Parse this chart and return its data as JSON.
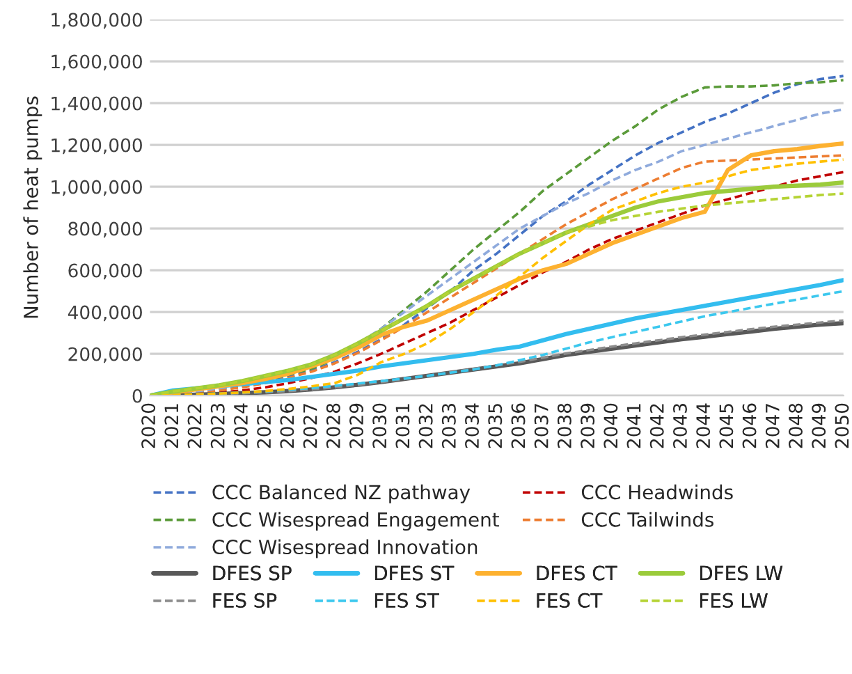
{
  "chart_data": {
    "type": "line",
    "ylabel": "Number of heat pumps",
    "x": [
      2020,
      2021,
      2022,
      2023,
      2024,
      2025,
      2026,
      2027,
      2028,
      2029,
      2030,
      2031,
      2032,
      2033,
      2034,
      2035,
      2036,
      2037,
      2038,
      2039,
      2040,
      2041,
      2042,
      2043,
      2044,
      2045,
      2046,
      2047,
      2048,
      2049,
      2050
    ],
    "xlim": [
      2020,
      2050
    ],
    "xticks": [
      2020,
      2021,
      2022,
      2023,
      2024,
      2025,
      2026,
      2027,
      2028,
      2029,
      2030,
      2031,
      2032,
      2033,
      2034,
      2035,
      2036,
      2037,
      2038,
      2039,
      2040,
      2041,
      2042,
      2043,
      2044,
      2045,
      2046,
      2047,
      2048,
      2049,
      2050
    ],
    "ylim": [
      0,
      1800000
    ],
    "yticks": [
      {
        "value": 0,
        "label": "0"
      },
      {
        "value": 200000,
        "label": "200,000"
      },
      {
        "value": 400000,
        "label": "400,000"
      },
      {
        "value": 600000,
        "label": "600,000"
      },
      {
        "value": 800000,
        "label": "800,000"
      },
      {
        "value": 1000000,
        "label": "1,000,000"
      },
      {
        "value": 1200000,
        "label": "1,200,000"
      },
      {
        "value": 1400000,
        "label": "1,400,000"
      },
      {
        "value": 1600000,
        "label": "1,600,000"
      },
      {
        "value": 1800000,
        "label": "1,800,000"
      }
    ],
    "grid": "y",
    "legend": "bottom",
    "marker": "none",
    "series": [
      {
        "name": "CCC Balanced NZ pathway",
        "color": "#4472c4",
        "line_style": "dashed",
        "values": [
          0,
          8000,
          18000,
          30000,
          45000,
          65000,
          90000,
          120000,
          160000,
          210000,
          270000,
          340000,
          420000,
          500000,
          600000,
          680000,
          770000,
          860000,
          930000,
          1010000,
          1080000,
          1150000,
          1210000,
          1260000,
          1310000,
          1350000,
          1400000,
          1450000,
          1490000,
          1515000,
          1530000
        ]
      },
      {
        "name": "CCC Headwinds",
        "color": "#c00000",
        "line_style": "dashed",
        "values": [
          0,
          3000,
          8000,
          15000,
          25000,
          40000,
          60000,
          85000,
          115000,
          155000,
          200000,
          250000,
          300000,
          350000,
          410000,
          470000,
          530000,
          590000,
          640000,
          700000,
          750000,
          790000,
          830000,
          870000,
          910000,
          940000,
          970000,
          1000000,
          1030000,
          1050000,
          1070000
        ]
      },
      {
        "name": "CCC Wisespread Engagement",
        "color": "#5b9b3a",
        "line_style": "dashed",
        "values": [
          0,
          10000,
          20000,
          35000,
          55000,
          75000,
          100000,
          130000,
          175000,
          240000,
          320000,
          410000,
          500000,
          600000,
          700000,
          790000,
          880000,
          980000,
          1060000,
          1140000,
          1220000,
          1290000,
          1370000,
          1430000,
          1475000,
          1480000,
          1480000,
          1485000,
          1495000,
          1500000,
          1510000
        ]
      },
      {
        "name": "CCC Tailwinds",
        "color": "#ed7d31",
        "line_style": "dashed",
        "values": [
          0,
          5000,
          15000,
          25000,
          40000,
          60000,
          85000,
          115000,
          155000,
          205000,
          265000,
          330000,
          400000,
          470000,
          540000,
          610000,
          680000,
          750000,
          820000,
          880000,
          940000,
          990000,
          1040000,
          1090000,
          1120000,
          1125000,
          1130000,
          1135000,
          1140000,
          1145000,
          1150000
        ]
      },
      {
        "name": "CCC Wisespread Innovation",
        "color": "#8faadc",
        "line_style": "dashed",
        "values": [
          0,
          10000,
          20000,
          35000,
          55000,
          80000,
          110000,
          145000,
          190000,
          250000,
          320000,
          400000,
          480000,
          560000,
          640000,
          720000,
          800000,
          860000,
          920000,
          970000,
          1030000,
          1080000,
          1120000,
          1170000,
          1200000,
          1230000,
          1260000,
          1290000,
          1320000,
          1350000,
          1370000
        ]
      },
      {
        "name": "DFES SP",
        "color": "#595959",
        "line_style": "solid",
        "values": [
          0,
          2000,
          5000,
          8000,
          12000,
          16000,
          22000,
          30000,
          40000,
          52000,
          65000,
          80000,
          95000,
          110000,
          125000,
          140000,
          155000,
          175000,
          195000,
          210000,
          225000,
          240000,
          255000,
          270000,
          282000,
          295000,
          307000,
          320000,
          330000,
          340000,
          347000
        ]
      },
      {
        "name": "DFES ST",
        "color": "#33bdef",
        "line_style": "solid",
        "values": [
          0,
          25000,
          35000,
          45000,
          55000,
          65000,
          75000,
          90000,
          105000,
          120000,
          140000,
          155000,
          170000,
          185000,
          200000,
          220000,
          235000,
          265000,
          295000,
          320000,
          345000,
          370000,
          390000,
          410000,
          430000,
          450000,
          470000,
          490000,
          510000,
          530000,
          553000
        ]
      },
      {
        "name": "DFES CT",
        "color": "#fdb130",
        "line_style": "solid",
        "values": [
          0,
          15000,
          30000,
          45000,
          60000,
          80000,
          105000,
          140000,
          180000,
          230000,
          290000,
          330000,
          360000,
          410000,
          460000,
          510000,
          560000,
          600000,
          630000,
          680000,
          730000,
          770000,
          810000,
          850000,
          880000,
          1080000,
          1150000,
          1170000,
          1180000,
          1195000,
          1207000
        ]
      },
      {
        "name": "DFES LW",
        "color": "#9bcb3b",
        "line_style": "solid",
        "values": [
          0,
          20000,
          35000,
          50000,
          70000,
          95000,
          120000,
          150000,
          195000,
          250000,
          310000,
          370000,
          430000,
          500000,
          560000,
          620000,
          680000,
          730000,
          780000,
          820000,
          860000,
          900000,
          930000,
          950000,
          970000,
          980000,
          990000,
          1000000,
          1005000,
          1010000,
          1020000
        ]
      },
      {
        "name": "FES SP",
        "color": "#8c8c8c",
        "line_style": "dashed",
        "values": [
          0,
          2000,
          5000,
          8000,
          12000,
          16000,
          22000,
          30000,
          40000,
          52000,
          65000,
          80000,
          95000,
          112000,
          128000,
          145000,
          162000,
          182000,
          202000,
          218000,
          235000,
          250000,
          265000,
          280000,
          292000,
          305000,
          318000,
          330000,
          340000,
          350000,
          360000
        ]
      },
      {
        "name": "FES ST",
        "color": "#3cc8ee",
        "line_style": "dashed",
        "values": [
          0,
          3000,
          6000,
          10000,
          15000,
          20000,
          28000,
          37000,
          47000,
          58000,
          70000,
          82000,
          95000,
          110000,
          125000,
          145000,
          170000,
          195000,
          225000,
          255000,
          280000,
          305000,
          330000,
          355000,
          380000,
          400000,
          420000,
          440000,
          460000,
          480000,
          500000
        ]
      },
      {
        "name": "FES CT",
        "color": "#ffc000",
        "line_style": "dashed",
        "values": [
          0,
          3000,
          6000,
          10000,
          15000,
          22000,
          32000,
          45000,
          60000,
          100000,
          160000,
          200000,
          250000,
          320000,
          400000,
          480000,
          570000,
          660000,
          740000,
          820000,
          890000,
          930000,
          970000,
          1000000,
          1020000,
          1050000,
          1080000,
          1095000,
          1110000,
          1120000,
          1130000
        ]
      },
      {
        "name": "FES LW",
        "color": "#b5d334",
        "line_style": "dashed",
        "values": [
          0,
          20000,
          35000,
          50000,
          70000,
          95000,
          120000,
          150000,
          195000,
          250000,
          310000,
          370000,
          430000,
          500000,
          560000,
          620000,
          680000,
          730000,
          780000,
          810000,
          840000,
          860000,
          880000,
          895000,
          910000,
          920000,
          930000,
          940000,
          950000,
          960000,
          967000
        ]
      }
    ]
  }
}
